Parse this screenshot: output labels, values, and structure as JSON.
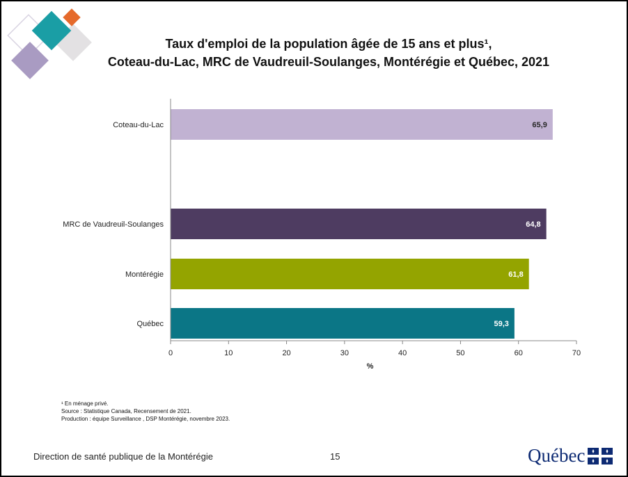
{
  "title": {
    "line1": "Taux d'emploi de la population âgée de 15 ans et plus¹,",
    "line2": "Coteau-du-Lac, MRC de Vaudreuil-Soulanges, Montérégie et Québec, 2021"
  },
  "chart_data": {
    "type": "bar",
    "orientation": "horizontal",
    "categories": [
      "Coteau-du-Lac",
      "MRC de Vaudreuil-Soulanges",
      "Montérégie",
      "Québec"
    ],
    "values": [
      65.9,
      64.8,
      61.8,
      59.3
    ],
    "value_labels": [
      "65,9",
      "64,8",
      "61,8",
      "59,3"
    ],
    "colors": [
      "#c1b2d2",
      "#4e3c61",
      "#94a400",
      "#0b7686"
    ],
    "label_colors": [
      "#2a2a2a",
      "#ffffff",
      "#ffffff",
      "#ffffff"
    ],
    "xlabel": "%",
    "xlim": [
      0,
      70
    ],
    "xticks": [
      0,
      10,
      20,
      30,
      40,
      50,
      60,
      70
    ],
    "grid": false,
    "legend": "none"
  },
  "footnotes": {
    "note1": "¹ En ménage privé.",
    "source": "Source : Statistique Canada, Recensement de 2021.",
    "production": "Production : équipe Surveillance , DSP Montérégie, novembre 2023."
  },
  "footer": {
    "left": "Direction de santé publique de la Montérégie",
    "page": "15",
    "logo_text": "Québec",
    "logo_icon": "fleur-de-lis-flag-icon"
  }
}
